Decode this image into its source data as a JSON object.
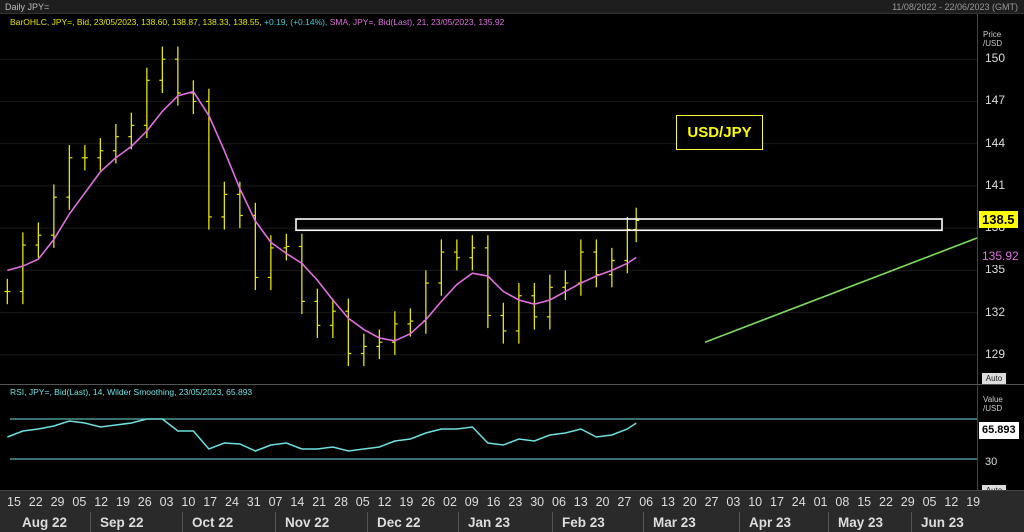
{
  "header": {
    "title": "Daily JPY=",
    "date_range": "11/08/2022 - 22/06/2023 (GMT)"
  },
  "price_legend": {
    "series1": "BarOHLC, JPY=, Bid, 23/05/2023, 138.60, 138.87, 138.33, 138.55,",
    "change": "+0.19, (+0.14%),",
    "series2": "SMA, JPY=, Bid(Last),  21, 23/05/2023, 135.92"
  },
  "rsi_legend": "RSI, JPY=, Bid(Last),  14, Wilder Smoothing, 23/05/2023, 65.893",
  "price_axis": {
    "label_top": "Price",
    "label_bottom": "/USD",
    "ticks": [
      "150",
      "147",
      "144",
      "141",
      "138",
      "135",
      "132",
      "129"
    ]
  },
  "rsi_axis": {
    "label_top": "Value",
    "label_bottom": "/USD",
    "ticks": [
      "60",
      "30"
    ]
  },
  "tags": {
    "last_price": "138.5",
    "sma": "135.92",
    "rsi": "65.893"
  },
  "auto_label": "Auto",
  "annotation": "USD/JPY",
  "days": [
    "15",
    "22",
    "29",
    "05",
    "12",
    "19",
    "26",
    "03",
    "10",
    "17",
    "24",
    "31",
    "07",
    "14",
    "21",
    "28",
    "05",
    "12",
    "19",
    "26",
    "02",
    "09",
    "16",
    "23",
    "30",
    "06",
    "13",
    "20",
    "27",
    "06",
    "13",
    "20",
    "27",
    "03",
    "10",
    "17",
    "24",
    "01",
    "08",
    "15",
    "22",
    "29",
    "05",
    "12",
    "19"
  ],
  "months": [
    "Aug 22",
    "Sep 22",
    "Oct 22",
    "Nov 22",
    "Dec 22",
    "Jan 23",
    "Feb 23",
    "Mar 23",
    "Apr 23",
    "May 23",
    "Jun 23"
  ],
  "colors": {
    "bars": "#e6e600",
    "sma": "#e070e0",
    "rsi": "#6ee0e0",
    "support": "#7cdc5c",
    "box": "#ffffff"
  },
  "chart_data": {
    "type": "line",
    "x": [
      "2022-08-12",
      "2022-08-19",
      "2022-08-26",
      "2022-09-02",
      "2022-09-09",
      "2022-09-16",
      "2022-09-23",
      "2022-09-30",
      "2022-10-07",
      "2022-10-14",
      "2022-10-21",
      "2022-10-28",
      "2022-11-04",
      "2022-11-11",
      "2022-11-18",
      "2022-11-25",
      "2022-12-02",
      "2022-12-09",
      "2022-12-16",
      "2022-12-23",
      "2022-12-30",
      "2023-01-06",
      "2023-01-13",
      "2023-01-20",
      "2023-01-27",
      "2023-02-03",
      "2023-02-10",
      "2023-02-17",
      "2023-02-24",
      "2023-03-03",
      "2023-03-10",
      "2023-03-17",
      "2023-03-24",
      "2023-03-31",
      "2023-04-07",
      "2023-04-14",
      "2023-04-21",
      "2023-04-28",
      "2023-05-05",
      "2023-05-12",
      "2023-05-19",
      "2023-05-23"
    ],
    "series": [
      {
        "name": "BarOHLC, JPY=, Bid",
        "values": [
          133.5,
          136.8,
          137.5,
          140.2,
          143.0,
          143.0,
          143.5,
          144.5,
          145.3,
          148.5,
          150.0,
          147.6,
          147.0,
          138.8,
          140.4,
          138.9,
          134.5,
          136.6,
          136.7,
          132.8,
          131.1,
          132.1,
          129.1,
          129.6,
          129.9,
          131.2,
          131.4,
          134.1,
          136.3,
          135.9,
          136.6,
          131.8,
          130.7,
          133.2,
          131.7,
          133.8,
          134.1,
          136.3,
          134.7,
          135.7,
          137.9,
          138.55
        ]
      },
      {
        "name": "SMA, JPY=, Bid(Last), 21",
        "values": [
          135.0,
          135.3,
          135.8,
          137.2,
          139.0,
          140.5,
          142.0,
          143.0,
          143.8,
          144.9,
          146.3,
          147.4,
          147.7,
          146.0,
          143.5,
          140.8,
          138.5,
          137.0,
          136.2,
          135.5,
          134.3,
          132.9,
          131.6,
          130.8,
          130.2,
          130.0,
          130.5,
          131.5,
          132.8,
          134.0,
          134.8,
          134.6,
          133.5,
          132.9,
          132.6,
          132.9,
          133.5,
          134.1,
          134.6,
          135.0,
          135.5,
          135.92
        ]
      },
      {
        "name": "RSI, JPY=, Bid(Last), 14, Wilder Smoothing",
        "values": [
          52,
          58,
          60,
          63,
          68,
          66,
          62,
          64,
          66,
          70,
          70,
          58,
          58,
          40,
          46,
          45,
          38,
          44,
          46,
          40,
          40,
          42,
          38,
          40,
          42,
          48,
          50,
          56,
          60,
          60,
          62,
          46,
          44,
          50,
          48,
          54,
          56,
          60,
          52,
          54,
          60,
          65.893
        ]
      }
    ],
    "ylabel": "Price /USD",
    "ylim": [
      127.5,
      152.5
    ],
    "rsi_ylim": [
      0,
      100
    ]
  }
}
